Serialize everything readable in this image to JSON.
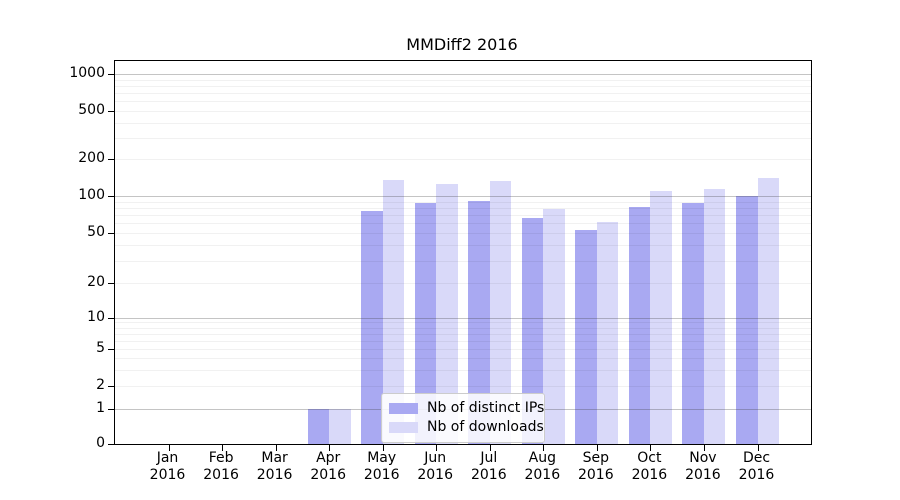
{
  "chart_data": {
    "type": "bar",
    "title": "MMDiff2 2016",
    "categories": [
      "Jan",
      "Feb",
      "Mar",
      "Apr",
      "May",
      "Jun",
      "Jul",
      "Aug",
      "Sep",
      "Oct",
      "Nov",
      "Dec"
    ],
    "year": "2016",
    "series": [
      {
        "name": "Nb of distinct IPs",
        "color": "#a9a9f2",
        "values": [
          0,
          0,
          0,
          1,
          76,
          88,
          92,
          66,
          53,
          81,
          88,
          100
        ]
      },
      {
        "name": "Nb of downloads",
        "color": "#d9d9f9",
        "values": [
          0,
          0,
          0,
          1,
          135,
          125,
          133,
          78,
          62,
          110,
          115,
          140
        ]
      }
    ],
    "xlabel": "",
    "ylabel": "",
    "yscale": "symlog",
    "ylim": [
      0,
      1000
    ],
    "yticks": [
      0,
      1,
      2,
      5,
      10,
      20,
      50,
      100,
      200,
      500,
      1000
    ],
    "grid": true,
    "legend_position": "lower center"
  }
}
